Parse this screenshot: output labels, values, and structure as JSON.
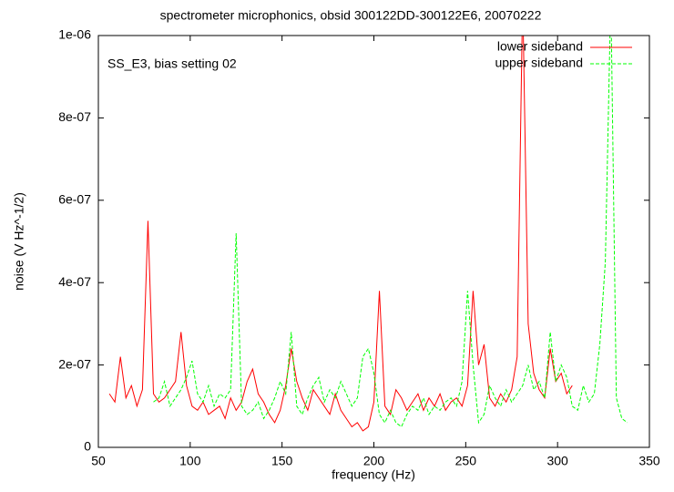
{
  "chart_data": {
    "type": "line",
    "title": "spectrometer microphonics, obsid 300122DD-300122E6, 20070222",
    "annotation": "SS_E3, bias setting 02",
    "x_label": "frequency (Hz)",
    "y_label": "noise (V Hz^-1/2)",
    "xlim": [
      50,
      350
    ],
    "xticks": [
      50,
      100,
      150,
      200,
      250,
      300,
      350
    ],
    "ylim": [
      0,
      1e-06
    ],
    "yticks": [
      0,
      {
        "value": 2e-07,
        "label": "2e-07"
      },
      {
        "value": 4e-07,
        "label": "4e-07"
      },
      {
        "value": 6e-07,
        "label": "6e-07"
      },
      {
        "value": 8e-07,
        "label": "8e-07"
      },
      {
        "value": 1e-06,
        "label": "1e-06"
      }
    ],
    "legend": "top-right",
    "x": [
      56,
      59,
      62,
      65,
      68,
      71,
      74,
      77,
      80,
      83,
      86,
      89,
      92,
      95,
      98,
      101,
      104,
      107,
      110,
      113,
      116,
      119,
      122,
      125,
      128,
      131,
      134,
      137,
      140,
      143,
      146,
      149,
      152,
      155,
      158,
      161,
      164,
      167,
      170,
      173,
      176,
      179,
      182,
      185,
      188,
      191,
      194,
      197,
      200,
      203,
      206,
      209,
      212,
      215,
      218,
      221,
      224,
      227,
      230,
      233,
      236,
      239,
      242,
      245,
      248,
      251,
      254,
      257,
      260,
      263,
      266,
      269,
      272,
      275,
      278,
      281,
      284,
      287,
      290,
      293,
      296,
      299,
      302,
      305,
      308,
      311,
      314,
      317,
      320,
      323,
      326,
      329,
      332,
      335,
      338
    ],
    "series": [
      {
        "name": "lower sideband",
        "color": "#ff0000",
        "dash": false,
        "values": [
          1.3e-07,
          1.1e-07,
          2.2e-07,
          1.2e-07,
          1.5e-07,
          1e-07,
          1.4e-07,
          5.5e-07,
          1.3e-07,
          1.1e-07,
          1.2e-07,
          1.4e-07,
          1.6e-07,
          2.8e-07,
          1.5e-07,
          1e-07,
          9e-08,
          1.1e-07,
          8e-08,
          9e-08,
          1e-07,
          7e-08,
          1.2e-07,
          9e-08,
          1.1e-07,
          1.6e-07,
          1.9e-07,
          1.3e-07,
          1.1e-07,
          8e-08,
          6e-08,
          9e-08,
          1.5e-07,
          2.4e-07,
          1.6e-07,
          1.2e-07,
          9e-08,
          1.4e-07,
          1.2e-07,
          1e-07,
          8e-08,
          1.3e-07,
          9e-08,
          7e-08,
          5e-08,
          6e-08,
          4e-08,
          5e-08,
          1.1e-07,
          3.8e-07,
          1e-07,
          8e-08,
          1.4e-07,
          1.2e-07,
          9e-08,
          1.1e-07,
          1.3e-07,
          9e-08,
          1.2e-07,
          1e-07,
          1.3e-07,
          9e-08,
          1.1e-07,
          1.2e-07,
          1e-07,
          1.5e-07,
          3.8e-07,
          2e-07,
          2.5e-07,
          1.2e-07,
          1e-07,
          1.3e-07,
          1.1e-07,
          1.4e-07,
          2.2e-07,
          1.1e-06,
          3e-07,
          1.8e-07,
          1.4e-07,
          1.2e-07,
          2.4e-07,
          1.6e-07,
          1.8e-07,
          1.3e-07,
          1.5e-07,
          null,
          null,
          null,
          null,
          null,
          null,
          null,
          null,
          null,
          null
        ]
      },
      {
        "name": "upper sideband",
        "color": "#00ff00",
        "dash": true,
        "values": [
          null,
          null,
          null,
          null,
          null,
          null,
          null,
          null,
          1.1e-07,
          1.2e-07,
          1.6e-07,
          1e-07,
          1.2e-07,
          1.4e-07,
          1.7e-07,
          2.1e-07,
          1.3e-07,
          1.1e-07,
          1.5e-07,
          1e-07,
          1.3e-07,
          1.2e-07,
          1.4e-07,
          5.2e-07,
          1e-07,
          8e-08,
          9e-08,
          1.1e-07,
          7e-08,
          9e-08,
          1.2e-07,
          1.6e-07,
          1.3e-07,
          2.8e-07,
          1e-07,
          8e-08,
          1.2e-07,
          1.5e-07,
          1.7e-07,
          1.1e-07,
          1.4e-07,
          1.2e-07,
          1.6e-07,
          1.3e-07,
          1e-07,
          1.2e-07,
          2.2e-07,
          2.4e-07,
          1.8e-07,
          8e-08,
          6e-08,
          9e-08,
          6e-08,
          5e-08,
          8e-08,
          1e-07,
          9e-08,
          1.2e-07,
          8e-08,
          1e-07,
          9e-08,
          1.1e-07,
          1.2e-07,
          1e-07,
          1.6e-07,
          3.8e-07,
          2e-07,
          6e-08,
          8e-08,
          1.5e-07,
          1.2e-07,
          1e-07,
          1.4e-07,
          1.1e-07,
          1.3e-07,
          1.5e-07,
          2e-07,
          1.4e-07,
          1.6e-07,
          1.2e-07,
          2.8e-07,
          1.6e-07,
          2e-07,
          1.7e-07,
          1e-07,
          9e-08,
          1.5e-07,
          1.1e-07,
          1.3e-07,
          2.5e-07,
          4.5e-07,
          1.1e-06,
          1.2e-07,
          7e-08,
          6e-08
        ]
      }
    ]
  }
}
